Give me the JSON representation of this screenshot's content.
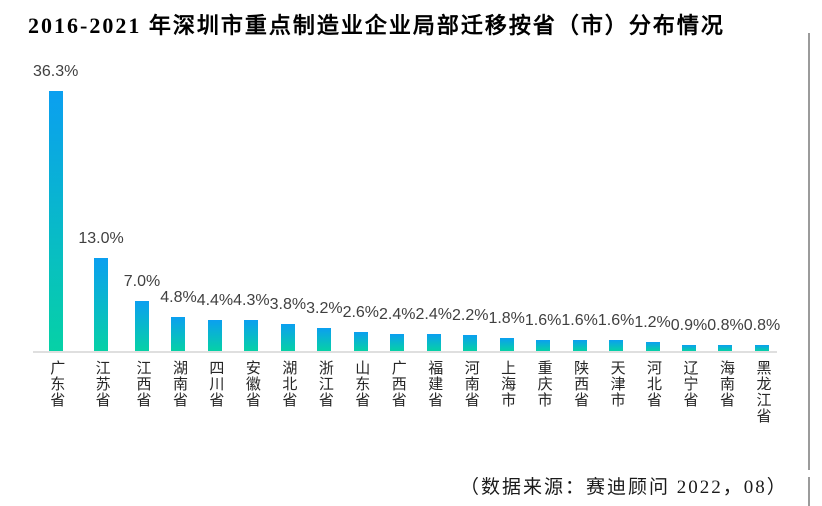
{
  "page": {
    "title": "2016-2021 年深圳市重点制造业企业局部迁移按省（市）分布情况",
    "source_note": "（数据来源：赛迪顾问 2022，08）"
  },
  "chart_data": {
    "type": "bar",
    "title": "2016-2021 年深圳市重点制造业企业局部迁移按省（市）分布情况",
    "categories": [
      "广东省",
      "江苏省",
      "江西省",
      "湖南省",
      "四川省",
      "安徽省",
      "湖北省",
      "浙江省",
      "山东省",
      "广西省",
      "福建省",
      "河南省",
      "上海市",
      "重庆市",
      "陕西省",
      "天津市",
      "河北省",
      "辽宁省",
      "海南省",
      "黑龙江省"
    ],
    "values": [
      36.3,
      13.0,
      7.0,
      4.8,
      4.4,
      4.3,
      3.8,
      3.2,
      2.6,
      2.4,
      2.4,
      2.2,
      1.8,
      1.6,
      1.6,
      1.6,
      1.2,
      0.9,
      0.8,
      0.8
    ],
    "data_labels": [
      "36.3%",
      "13.0%",
      "7.0%",
      "4.8%",
      "4.4%",
      "4.3%",
      "3.8%",
      "3.2%",
      "2.6%",
      "2.4%",
      "2.4%",
      "2.2%",
      "1.8%",
      "1.6%",
      "1.6%",
      "1.6%",
      "1.2%",
      "0.9%",
      "0.8%",
      "0.8%"
    ],
    "unit": "%",
    "xlabel": "",
    "ylabel": "",
    "ylim": [
      0,
      40
    ],
    "grid": false,
    "legend": false,
    "data_label_position": "outside-end",
    "bar_color_top": "#0b9ff0",
    "bar_color_bottom": "#06d1a6",
    "axis_line_color": "#dfdfdf",
    "data_label_color": "#404040",
    "category_label_color": "#262626",
    "source_note": "（数据来源：赛迪顾问 2022，08）"
  }
}
